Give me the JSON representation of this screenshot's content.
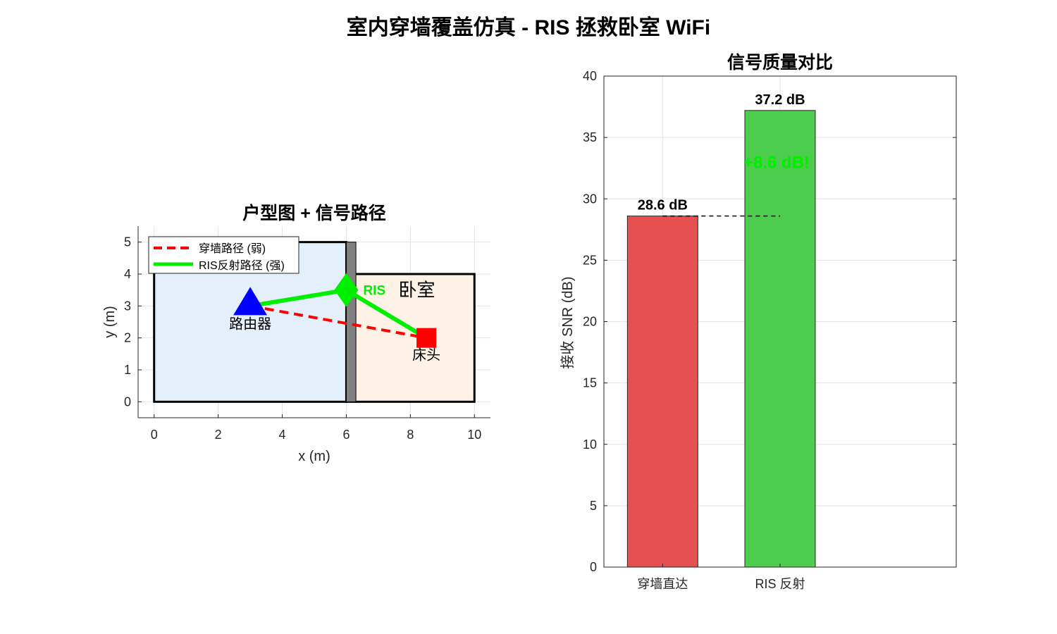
{
  "figure": {
    "title": "室内穿墙覆盖仿真 - RIS 拯救卧室 WiFi"
  },
  "chart_data": [
    {
      "type": "scatter",
      "title": "户型图 + 信号路径",
      "xlabel": "x (m)",
      "ylabel": "y (m)",
      "xlim": [
        -0.5,
        10.5
      ],
      "ylim": [
        -0.5,
        5.5
      ],
      "xticks": [
        0,
        2,
        4,
        6,
        8,
        10
      ],
      "yticks": [
        0,
        1,
        2,
        3,
        4,
        5
      ],
      "grid": true,
      "legend_position": "top-left",
      "rooms": [
        {
          "x0": 0,
          "y0": 0,
          "x1": 6,
          "y1": 5,
          "fill": "#e3f0fc"
        },
        {
          "x0": 6,
          "y0": 0,
          "x1": 10,
          "y1": 4,
          "fill": "#fdf2e5"
        }
      ],
      "wall": {
        "x0": 6.0,
        "x1": 6.3,
        "y0": 0,
        "y1": 5,
        "color": "#808080"
      },
      "markers": [
        {
          "shape": "triangle",
          "x": 3,
          "y": 3,
          "color": "#0000ff",
          "label": "路由器"
        },
        {
          "shape": "diamond",
          "x": 6,
          "y": 3.5,
          "color": "#00ee00",
          "label": "RIS"
        },
        {
          "shape": "square",
          "x": 8.5,
          "y": 2,
          "color": "#ff0000",
          "label": "床头"
        }
      ],
      "room_label": {
        "text": "卧室",
        "x": 8.2,
        "y": 3.5
      },
      "series": [
        {
          "name": "穿墙路径 (弱)",
          "style": "dashed",
          "color": "#ff0000",
          "x": [
            3,
            8.5
          ],
          "y": [
            3,
            2
          ]
        },
        {
          "name": "RIS反射路径 (强)",
          "style": "solid",
          "color": "#00ee00",
          "x": [
            3,
            6,
            8.5
          ],
          "y": [
            3,
            3.5,
            2
          ]
        }
      ]
    },
    {
      "type": "bar",
      "title": "信号质量对比",
      "ylabel": "接收 SNR (dB)",
      "ylim": [
        0,
        40
      ],
      "yticks": [
        0,
        5,
        10,
        15,
        20,
        25,
        30,
        35,
        40
      ],
      "xlim": [
        0.5,
        3.5
      ],
      "grid": true,
      "categories": [
        "穿墙直达",
        "RIS 反射"
      ],
      "values": [
        28.6,
        37.2
      ],
      "colors": [
        "#e65050",
        "#4ecc4e"
      ],
      "data_labels": [
        "28.6 dB",
        "37.2 dB"
      ],
      "annotation": {
        "text": "+8.6 dB!",
        "color": "#00ee00"
      },
      "reference_line": {
        "y": 28.6,
        "x0": 1.0,
        "x1": 2.0,
        "style": "dashed"
      }
    }
  ]
}
